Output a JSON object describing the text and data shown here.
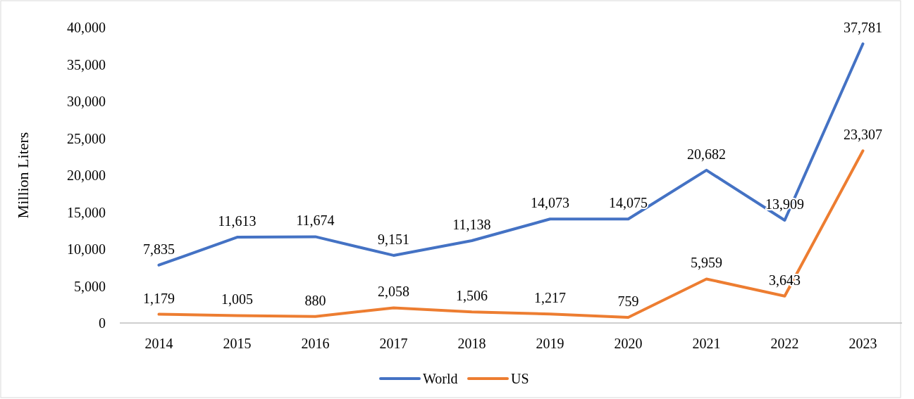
{
  "chart_data": {
    "type": "line",
    "ylabel": "Million Liters",
    "categories": [
      "2014",
      "2015",
      "2016",
      "2017",
      "2018",
      "2019",
      "2020",
      "2021",
      "2022",
      "2023"
    ],
    "series": [
      {
        "name": "World",
        "color": "#4472c4",
        "values": [
          7835,
          11613,
          11674,
          9151,
          11138,
          14073,
          14075,
          20682,
          13909,
          37781
        ],
        "value_labels": [
          "7,835",
          "11,613",
          "11,674",
          "9,151",
          "11,138",
          "14,073",
          "14,075",
          "20,682",
          "13,909",
          "37,781"
        ]
      },
      {
        "name": "US",
        "color": "#ed7d31",
        "values": [
          1179,
          1005,
          880,
          2058,
          1506,
          1217,
          759,
          5959,
          3643,
          23307
        ],
        "value_labels": [
          "1,179",
          "1,005",
          "880",
          "2,058",
          "1,506",
          "1,217",
          "759",
          "5,959",
          "3,643",
          "23,307"
        ]
      }
    ],
    "ylim": [
      0,
      40000
    ],
    "yticks": [
      {
        "value": 0,
        "label": "0"
      },
      {
        "value": 5000,
        "label": "5,000"
      },
      {
        "value": 10000,
        "label": "10,000"
      },
      {
        "value": 15000,
        "label": "15,000"
      },
      {
        "value": 20000,
        "label": "20,000"
      },
      {
        "value": 25000,
        "label": "25,000"
      },
      {
        "value": 30000,
        "label": "30,000"
      },
      {
        "value": 35000,
        "label": "35,000"
      },
      {
        "value": 40000,
        "label": "40,000"
      }
    ],
    "grid": false,
    "legend": "bottom",
    "marker": "none",
    "line_style": "solid"
  }
}
